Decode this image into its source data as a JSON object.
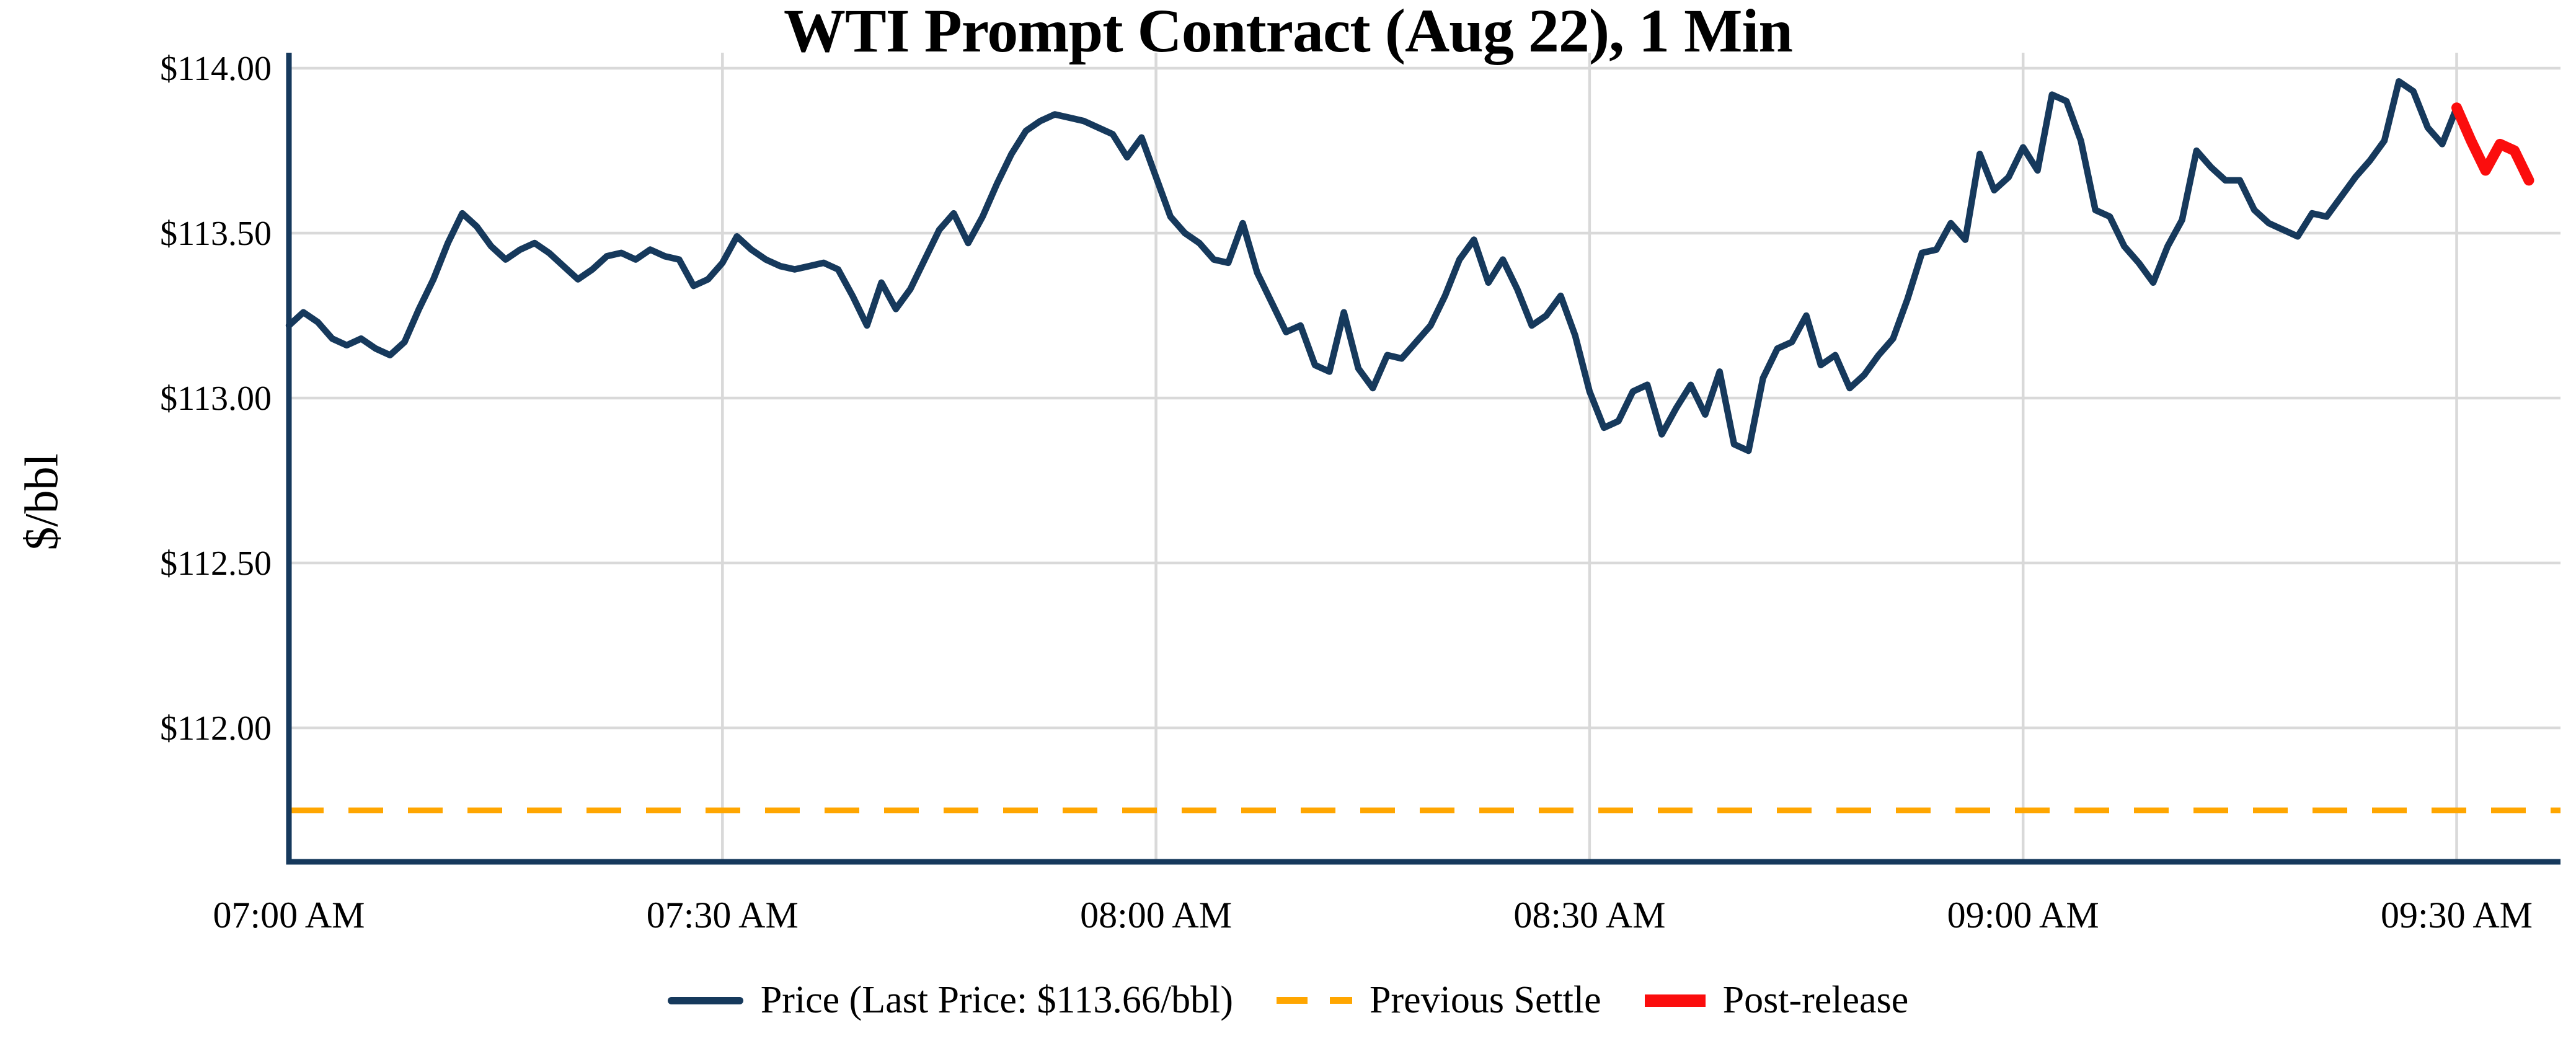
{
  "title": "WTI Prompt Contract (Aug 22), 1 Min",
  "chart_data": {
    "type": "line",
    "title": "WTI Prompt Contract (Aug 22), 1 Min",
    "xlabel": "",
    "ylabel": "$/bbl",
    "grid": true,
    "legend_position": "bottom",
    "x_axis": {
      "unit": "time",
      "tick_labels": [
        "07:00 AM",
        "07:30 AM",
        "08:00 AM",
        "08:30 AM",
        "09:00 AM",
        "09:30 AM"
      ],
      "tick_minutes": [
        0,
        30,
        60,
        90,
        120,
        150
      ],
      "domain_minutes": [
        0,
        157
      ]
    },
    "y_axis": {
      "unit": "$/bbl",
      "ticks": [
        {
          "value": 112.0,
          "label": "$112.00"
        },
        {
          "value": 112.5,
          "label": "$112.50"
        },
        {
          "value": 113.0,
          "label": "$113.00"
        },
        {
          "value": 113.5,
          "label": "$113.50"
        },
        {
          "value": 114.0,
          "label": "$114.00"
        }
      ],
      "range": [
        111.59,
        114.05
      ]
    },
    "last_price_text": "$113.66/bbl",
    "series": [
      {
        "name": "Price",
        "legend_label": "Price (Last Price: $113.66/bbl)",
        "color": "#16395c",
        "style": "solid",
        "start_minute": 0,
        "step_minutes": 1,
        "values": [
          113.22,
          113.26,
          113.23,
          113.18,
          113.16,
          113.18,
          113.15,
          113.13,
          113.17,
          113.27,
          113.36,
          113.47,
          113.56,
          113.52,
          113.46,
          113.42,
          113.45,
          113.47,
          113.44,
          113.4,
          113.36,
          113.39,
          113.43,
          113.44,
          113.42,
          113.45,
          113.43,
          113.42,
          113.34,
          113.36,
          113.41,
          113.49,
          113.45,
          113.42,
          113.4,
          113.39,
          113.4,
          113.41,
          113.39,
          113.31,
          113.22,
          113.35,
          113.27,
          113.33,
          113.42,
          113.51,
          113.56,
          113.47,
          113.55,
          113.65,
          113.74,
          113.81,
          113.84,
          113.86,
          113.85,
          113.84,
          113.82,
          113.8,
          113.73,
          113.79,
          113.67,
          113.55,
          113.5,
          113.47,
          113.42,
          113.41,
          113.53,
          113.38,
          113.29,
          113.2,
          113.22,
          113.1,
          113.08,
          113.26,
          113.09,
          113.03,
          113.13,
          113.12,
          113.17,
          113.22,
          113.31,
          113.42,
          113.48,
          113.35,
          113.42,
          113.33,
          113.22,
          113.25,
          113.31,
          113.19,
          113.02,
          112.91,
          112.93,
          113.02,
          113.04,
          112.89,
          112.97,
          113.04,
          112.95,
          113.08,
          112.86,
          112.84,
          113.06,
          113.15,
          113.17,
          113.25,
          113.1,
          113.13,
          113.03,
          113.07,
          113.13,
          113.18,
          113.3,
          113.44,
          113.45,
          113.53,
          113.48,
          113.74,
          113.63,
          113.67,
          113.76,
          113.69,
          113.92,
          113.9,
          113.78,
          113.57,
          113.55,
          113.46,
          113.41,
          113.35,
          113.46,
          113.54,
          113.75,
          113.7,
          113.66,
          113.66,
          113.57,
          113.53,
          113.51,
          113.49,
          113.56,
          113.55,
          113.61,
          113.67,
          113.72,
          113.78,
          113.96,
          113.93,
          113.82,
          113.77,
          113.88
        ]
      },
      {
        "name": "Post-release",
        "legend_label": "Post-release",
        "color": "#fb0d0d",
        "style": "solid-thick",
        "start_minute": 150,
        "step_minutes": 1,
        "values": [
          113.88,
          113.78,
          113.69,
          113.77,
          113.75,
          113.66
        ]
      }
    ],
    "reference_lines": [
      {
        "name": "Previous Settle",
        "legend_label": "Previous Settle",
        "color": "#ffa600",
        "style": "dashed",
        "value": 111.75
      }
    ]
  }
}
